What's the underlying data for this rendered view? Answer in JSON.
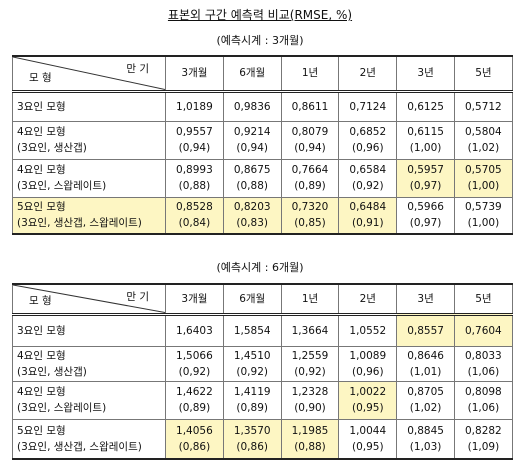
{
  "title": "표본외 구간 예측력 비교(RMSE, %)",
  "tables": [
    {
      "caption": "(예측시계 : 3개월)",
      "header": {
        "model": "모 형",
        "maturity": "만 기",
        "columns": [
          "3개월",
          "6개월",
          "1년",
          "2년",
          "3년",
          "5년"
        ]
      },
      "rows": [
        {
          "label": [
            "3요인 모형"
          ],
          "values": [
            "1,0189",
            "0,9836",
            "0,8611",
            "0,7124",
            "0,6125",
            "0,5712"
          ]
        },
        {
          "label": [
            "4요인 모형",
            "(3요인, 생산갭)"
          ],
          "values": [
            "0,9557",
            "0,9214",
            "0,8079",
            "0,6852",
            "0,6115",
            "0,5804"
          ],
          "ratios": [
            "(0,94)",
            "(0,94)",
            "(0,94)",
            "(0,96)",
            "(1,00)",
            "(1,02)"
          ]
        },
        {
          "label": [
            "4요인 모형",
            "(3요인, 스왑레이트)"
          ],
          "values": [
            "0,8993",
            "0,8675",
            "0,7664",
            "0,6584",
            "0,5957",
            "0,5705"
          ],
          "ratios": [
            "(0,88)",
            "(0,88)",
            "(0,89)",
            "(0,92)",
            "(0,97)",
            "(1,00)"
          ]
        },
        {
          "label": [
            "5요인 모형",
            "(3요인, 생산갭, 스왑레이트)"
          ],
          "values": [
            "0,8528",
            "0,8203",
            "0,7320",
            "0,6484",
            "0,5966",
            "0,5739"
          ],
          "ratios": [
            "(0,84)",
            "(0,83)",
            "(0,85)",
            "(0,91)",
            "(0,97)",
            "(1,00)"
          ]
        }
      ]
    },
    {
      "caption": "(예측시계 : 6개월)",
      "header": {
        "model": "모 형",
        "maturity": "만 기",
        "columns": [
          "3개월",
          "6개월",
          "1년",
          "2년",
          "3년",
          "5년"
        ]
      },
      "rows": [
        {
          "label": [
            "3요인 모형"
          ],
          "values": [
            "1,6403",
            "1,5854",
            "1,3664",
            "1,0552",
            "0,8557",
            "0,7604"
          ]
        },
        {
          "label": [
            "4요인 모형",
            "(3요인, 생산갭)"
          ],
          "values": [
            "1,5066",
            "1,4510",
            "1,2559",
            "1,0089",
            "0,8646",
            "0,8033"
          ],
          "ratios": [
            "(0,92)",
            "(0,92)",
            "(0,92)",
            "(0,96)",
            "(1,01)",
            "(1,06)"
          ]
        },
        {
          "label": [
            "4요인 모형",
            "(3요인, 스왑레이트)"
          ],
          "values": [
            "1,4622",
            "1,4119",
            "1,2328",
            "1,0022",
            "0,8705",
            "0,8098"
          ],
          "ratios": [
            "(0,89)",
            "(0,89)",
            "(0,90)",
            "(0,95)",
            "(1,02)",
            "(1,06)"
          ]
        },
        {
          "label": [
            "5요인 모형",
            "(3요인, 생산갭, 스왑레이트)"
          ],
          "values": [
            "1,4056",
            "1,3570",
            "1,1985",
            "1,0044",
            "0,8845",
            "0,8282"
          ],
          "ratios": [
            "(0,86)",
            "(0,86)",
            "(0,88)",
            "(0,95)",
            "(1,03)",
            "(1,09)"
          ]
        }
      ]
    }
  ]
}
